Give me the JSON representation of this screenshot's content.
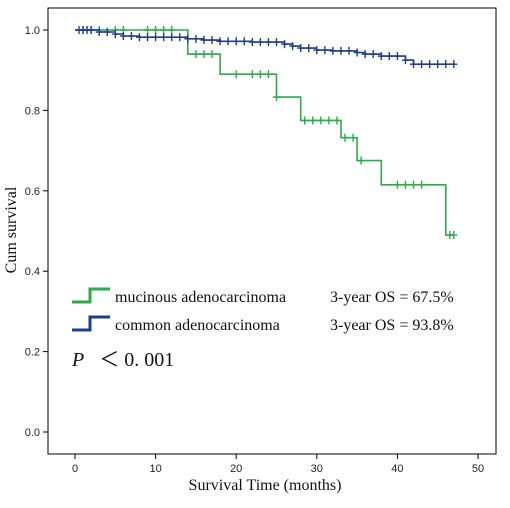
{
  "chart_data": {
    "type": "line",
    "xlabel": "Survival Time (months)",
    "ylabel": "Cum survival",
    "xlim": [
      0,
      50
    ],
    "ylim": [
      0,
      1.0
    ],
    "x_ticks": [
      "0",
      "10",
      "20",
      "30",
      "40",
      "50"
    ],
    "y_ticks": [
      "0.0",
      "0.2",
      "0.4",
      "0.6",
      "0.8",
      "1.0"
    ],
    "x_tick_values": [
      0,
      10,
      20,
      30,
      40,
      50
    ],
    "y_tick_values": [
      0.0,
      0.2,
      0.4,
      0.6,
      0.8,
      1.0
    ],
    "grid": false,
    "legend_position": "lower-left",
    "series": [
      {
        "name": "mucinous adenocarcinoma",
        "label": "3-year OS = 67.5%",
        "color": "#2eaa4a",
        "steps": [
          [
            0,
            1.0
          ],
          [
            14,
            0.94
          ],
          [
            18,
            0.89
          ],
          [
            25,
            0.833
          ],
          [
            28,
            0.775
          ],
          [
            33,
            0.732
          ],
          [
            35,
            0.675
          ],
          [
            38,
            0.615
          ],
          [
            46,
            0.49
          ],
          [
            47,
            0.49
          ]
        ],
        "censored": [
          [
            1,
            1.0
          ],
          [
            2,
            1.0
          ],
          [
            3,
            1.0
          ],
          [
            5,
            1.0
          ],
          [
            6,
            1.0
          ],
          [
            9,
            1.0
          ],
          [
            10,
            1.0
          ],
          [
            11,
            1.0
          ],
          [
            12,
            1.0
          ],
          [
            15,
            0.94
          ],
          [
            16,
            0.94
          ],
          [
            17,
            0.94
          ],
          [
            20,
            0.89
          ],
          [
            22,
            0.89
          ],
          [
            23,
            0.89
          ],
          [
            24,
            0.89
          ],
          [
            25,
            0.833
          ],
          [
            28.5,
            0.775
          ],
          [
            29.5,
            0.775
          ],
          [
            30.5,
            0.775
          ],
          [
            31.5,
            0.775
          ],
          [
            32.5,
            0.775
          ],
          [
            33.5,
            0.732
          ],
          [
            34.5,
            0.732
          ],
          [
            35.5,
            0.675
          ],
          [
            40,
            0.615
          ],
          [
            41,
            0.615
          ],
          [
            42,
            0.615
          ],
          [
            43,
            0.615
          ],
          [
            46.5,
            0.49
          ],
          [
            47,
            0.49
          ]
        ]
      },
      {
        "name": "common adenocarcinoma",
        "label": "3-year OS = 93.8%",
        "color": "#1f3d8c",
        "steps": [
          [
            0,
            1.0
          ],
          [
            3,
            0.995
          ],
          [
            5,
            0.99
          ],
          [
            6,
            0.985
          ],
          [
            8,
            0.982
          ],
          [
            14,
            0.978
          ],
          [
            16,
            0.975
          ],
          [
            18,
            0.972
          ],
          [
            22,
            0.97
          ],
          [
            26,
            0.965
          ],
          [
            27,
            0.96
          ],
          [
            28,
            0.955
          ],
          [
            30,
            0.95
          ],
          [
            32,
            0.948
          ],
          [
            35,
            0.944
          ],
          [
            36,
            0.94
          ],
          [
            38,
            0.935
          ],
          [
            41,
            0.925
          ],
          [
            42,
            0.915
          ],
          [
            47,
            0.915
          ]
        ],
        "censored": [
          [
            0.5,
            1.0
          ],
          [
            1,
            1.0
          ],
          [
            1.5,
            1.0
          ],
          [
            2,
            1.0
          ],
          [
            3,
            0.995
          ],
          [
            4,
            0.995
          ],
          [
            5,
            0.99
          ],
          [
            6,
            0.985
          ],
          [
            7,
            0.985
          ],
          [
            8,
            0.982
          ],
          [
            9,
            0.982
          ],
          [
            10,
            0.982
          ],
          [
            11,
            0.982
          ],
          [
            12,
            0.982
          ],
          [
            13,
            0.982
          ],
          [
            14,
            0.978
          ],
          [
            15,
            0.978
          ],
          [
            16,
            0.975
          ],
          [
            17,
            0.975
          ],
          [
            18,
            0.972
          ],
          [
            19,
            0.972
          ],
          [
            20,
            0.972
          ],
          [
            21,
            0.972
          ],
          [
            22,
            0.97
          ],
          [
            23,
            0.97
          ],
          [
            24,
            0.97
          ],
          [
            25,
            0.97
          ],
          [
            26,
            0.965
          ],
          [
            27,
            0.96
          ],
          [
            28,
            0.955
          ],
          [
            29,
            0.955
          ],
          [
            30,
            0.95
          ],
          [
            31,
            0.95
          ],
          [
            32,
            0.948
          ],
          [
            33,
            0.948
          ],
          [
            34,
            0.948
          ],
          [
            35,
            0.944
          ],
          [
            36,
            0.94
          ],
          [
            37,
            0.94
          ],
          [
            38,
            0.935
          ],
          [
            39,
            0.935
          ],
          [
            40,
            0.935
          ],
          [
            41,
            0.925
          ],
          [
            42,
            0.915
          ],
          [
            43,
            0.915
          ],
          [
            44,
            0.915
          ],
          [
            45,
            0.915
          ],
          [
            46,
            0.915
          ],
          [
            47,
            0.915
          ]
        ]
      }
    ],
    "annotation": {
      "p_symbol": "P",
      "p_rest": "＜ 0. 001"
    }
  }
}
